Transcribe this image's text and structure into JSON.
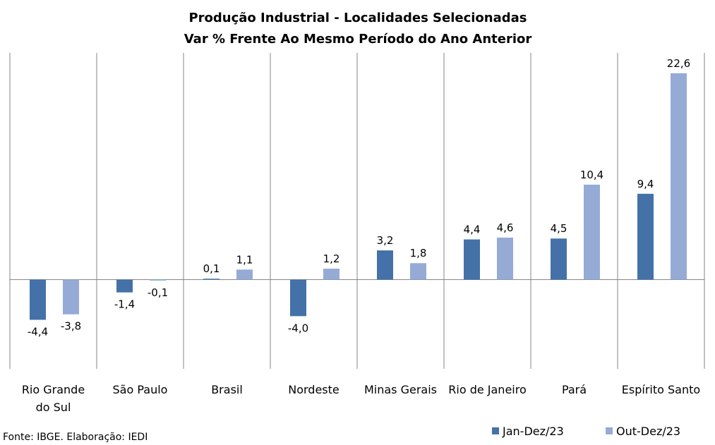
{
  "chart_data": {
    "type": "bar",
    "title": [
      "Produção Industrial - Localidades Selecionadas",
      "Var % Frente Ao Mesmo Período do Ano Anterior"
    ],
    "categories": [
      [
        "Rio Grande",
        "do Sul"
      ],
      [
        "São Paulo"
      ],
      [
        "Brasil"
      ],
      [
        "Nordeste"
      ],
      [
        "Minas Gerais"
      ],
      [
        "Rio de Janeiro"
      ],
      [
        "Pará"
      ],
      [
        "Espírito Santo"
      ]
    ],
    "series": [
      {
        "name": "Jan-Dez/23",
        "color": "#4472A8",
        "values": [
          -4.4,
          -1.4,
          0.1,
          -4.0,
          3.2,
          4.4,
          4.5,
          9.4
        ],
        "labels": [
          "-4,4",
          "-1,4",
          "0,1",
          "-4,0",
          "3,2",
          "4,4",
          "4,5",
          "9,4"
        ]
      },
      {
        "name": "Out-Dez/23",
        "color": "#95ABD6",
        "values": [
          -3.8,
          -0.1,
          1.1,
          1.2,
          1.8,
          4.6,
          10.4,
          22.6
        ],
        "labels": [
          "-3,8",
          "-0,1",
          "1,1",
          "1,2",
          "1,8",
          "4,6",
          "10,4",
          "22,6"
        ]
      }
    ],
    "ylim": [
      -10,
      25
    ],
    "grid": "vertical separators between categories",
    "legend": "bottom-right"
  },
  "source_text": "Fonte: IBGE. Elaboração: IEDI"
}
